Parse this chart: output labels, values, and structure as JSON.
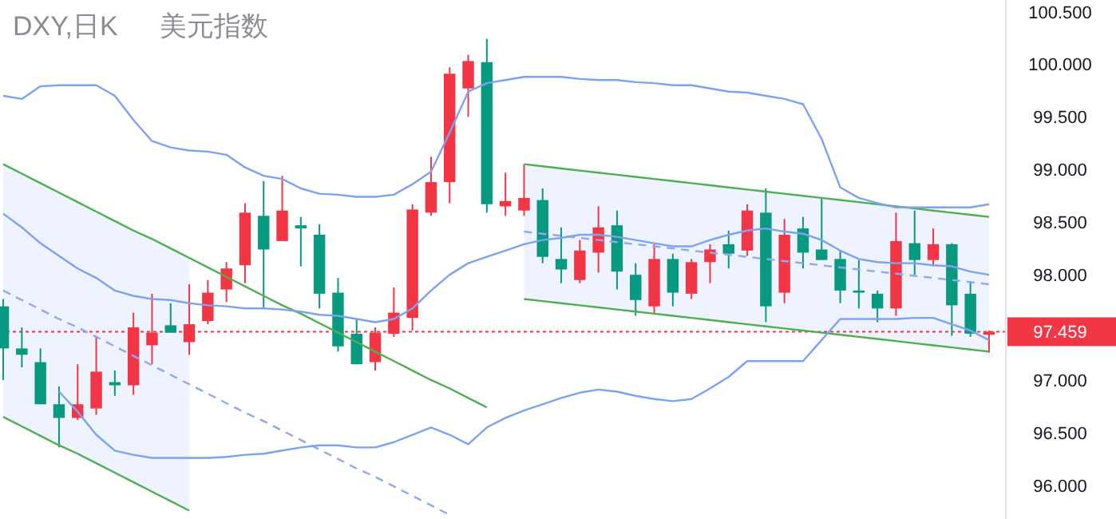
{
  "chart_data": {
    "type": "candlestick",
    "title": "DXY,日K",
    "subtitle": "美元指数",
    "categories": [
      null,
      null,
      null,
      null,
      null,
      null,
      null,
      null,
      null,
      null,
      null,
      null,
      null,
      null,
      null,
      null,
      null,
      null,
      null,
      null,
      null,
      null,
      null,
      null,
      null,
      null,
      null,
      null,
      null,
      null,
      null,
      null,
      null,
      null,
      null,
      null,
      null,
      null,
      null,
      null,
      null,
      null,
      null,
      null,
      null,
      null,
      null,
      null,
      null,
      null,
      null,
      null,
      null,
      null
    ],
    "ohlc": [
      [
        97.7,
        97.77,
        97.0,
        97.3
      ],
      [
        97.3,
        97.5,
        97.12,
        97.24
      ],
      [
        97.17,
        97.3,
        96.77,
        96.77
      ],
      [
        96.77,
        96.94,
        96.36,
        96.64
      ],
      [
        96.64,
        97.15,
        96.62,
        96.77
      ],
      [
        96.73,
        97.41,
        96.67,
        97.08
      ],
      [
        96.98,
        97.09,
        96.85,
        96.95
      ],
      [
        96.95,
        97.64,
        96.86,
        97.5
      ],
      [
        97.33,
        97.82,
        97.15,
        97.45
      ],
      [
        97.52,
        97.73,
        97.45,
        97.45
      ],
      [
        97.36,
        97.91,
        97.24,
        97.53
      ],
      [
        97.56,
        97.95,
        97.53,
        97.83
      ],
      [
        97.86,
        98.12,
        97.74,
        98.06
      ],
      [
        98.09,
        98.68,
        97.92,
        98.59
      ],
      [
        98.56,
        98.89,
        97.68,
        98.24
      ],
      [
        98.32,
        98.94,
        98.32,
        98.61
      ],
      [
        98.47,
        98.55,
        98.08,
        98.44
      ],
      [
        98.38,
        98.48,
        97.68,
        97.82
      ],
      [
        97.83,
        97.97,
        97.27,
        97.32
      ],
      [
        97.44,
        97.58,
        97.15,
        97.15
      ],
      [
        97.17,
        97.5,
        97.09,
        97.45
      ],
      [
        97.44,
        97.88,
        97.41,
        97.64
      ],
      [
        97.59,
        98.67,
        97.47,
        98.62
      ],
      [
        98.59,
        99.12,
        98.56,
        98.88
      ],
      [
        98.88,
        99.97,
        98.68,
        99.91
      ],
      [
        99.77,
        100.09,
        99.5,
        100.03
      ],
      [
        100.02,
        100.24,
        98.59,
        98.67
      ],
      [
        98.65,
        98.97,
        98.56,
        98.7
      ],
      [
        98.61,
        99.05,
        98.56,
        98.73
      ],
      [
        98.71,
        98.82,
        98.11,
        98.17
      ],
      [
        98.15,
        98.45,
        97.92,
        98.05
      ],
      [
        97.95,
        98.33,
        97.92,
        98.23
      ],
      [
        98.21,
        98.65,
        98.02,
        98.45
      ],
      [
        98.47,
        98.61,
        97.86,
        98.03
      ],
      [
        98.0,
        98.11,
        97.61,
        97.76
      ],
      [
        97.7,
        98.29,
        97.62,
        98.15
      ],
      [
        98.15,
        98.2,
        97.7,
        97.83
      ],
      [
        97.82,
        98.15,
        97.77,
        98.12
      ],
      [
        98.12,
        98.29,
        97.92,
        98.24
      ],
      [
        98.29,
        98.42,
        98.06,
        98.2
      ],
      [
        98.23,
        98.67,
        98.18,
        98.61
      ],
      [
        98.59,
        98.82,
        97.55,
        97.7
      ],
      [
        97.83,
        98.53,
        97.73,
        98.38
      ],
      [
        98.44,
        98.55,
        98.06,
        98.21
      ],
      [
        98.24,
        98.73,
        98.14,
        98.14
      ],
      [
        98.15,
        98.23,
        97.73,
        97.85
      ],
      [
        97.85,
        98.14,
        97.68,
        97.83
      ],
      [
        97.82,
        97.85,
        97.55,
        97.68
      ],
      [
        97.68,
        98.59,
        97.61,
        98.32
      ],
      [
        98.3,
        98.61,
        98.0,
        98.14
      ],
      [
        98.14,
        98.44,
        98.08,
        98.29
      ],
      [
        98.29,
        98.3,
        97.42,
        97.71
      ],
      [
        97.82,
        97.94,
        97.41,
        97.44
      ],
      [
        97.43,
        97.47,
        97.26,
        97.459
      ]
    ],
    "colors": [
      "#089981",
      "#089981",
      "#089981",
      "#089981",
      "#f23645",
      "#f23645",
      "#089981",
      "#f23645",
      "#f23645",
      "#089981",
      "#f23645",
      "#f23645",
      "#f23645",
      "#f23645",
      "#089981",
      "#f23645",
      "#089981",
      "#089981",
      "#089981",
      "#089981",
      "#f23645",
      "#f23645",
      "#f23645",
      "#f23645",
      "#f23645",
      "#f23645",
      "#089981",
      "#f23645",
      "#f23645",
      "#089981",
      "#089981",
      "#f23645",
      "#f23645",
      "#089981",
      "#089981",
      "#f23645",
      "#089981",
      "#f23645",
      "#f23645",
      "#089981",
      "#f23645",
      "#089981",
      "#f23645",
      "#089981",
      "#089981",
      "#089981",
      "#089981",
      "#089981",
      "#f23645",
      "#089981",
      "#f23645",
      "#089981",
      "#089981",
      "#f23645"
    ],
    "series": [
      {
        "type": "line",
        "color": "#8fa8ee",
        "line_style": "dashed",
        "values": [
          97.85,
          97.76,
          97.67,
          97.58,
          97.5,
          97.41,
          97.32,
          97.23,
          97.14,
          97.05,
          96.96,
          96.87,
          96.78,
          96.69,
          96.61,
          96.52,
          96.43,
          96.34,
          96.25,
          96.16,
          96.08,
          95.99,
          95.9,
          95.81,
          95.72,
          null,
          null,
          null,
          null,
          null,
          null,
          null,
          null,
          null,
          null,
          null,
          null,
          null,
          null,
          null,
          null,
          null,
          null,
          null,
          null,
          null,
          null,
          null,
          null,
          null,
          null,
          null,
          null,
          null
        ],
        "upper": [
          99.05,
          98.96,
          98.87,
          98.78,
          98.69,
          98.6,
          98.51,
          98.42,
          98.34,
          98.25,
          98.16,
          null,
          null,
          null,
          null,
          null,
          null,
          null,
          null,
          null,
          null,
          null,
          null,
          null,
          null,
          null,
          null,
          null,
          null,
          null,
          null,
          null,
          null,
          null,
          null,
          null,
          null,
          null,
          null,
          null,
          null,
          null,
          null,
          null,
          null,
          null,
          null,
          null,
          null,
          null,
          null,
          null,
          null,
          null
        ],
        "lower": [
          96.65,
          96.56,
          96.47,
          96.38,
          96.3,
          96.21,
          96.12,
          96.03,
          95.94,
          95.85,
          95.76,
          null,
          null,
          null,
          null,
          null,
          null,
          null,
          null,
          null,
          null,
          null,
          null,
          null,
          null,
          null,
          null,
          null,
          null,
          null,
          null,
          null,
          null,
          null,
          null,
          null,
          null,
          null,
          null,
          null,
          null,
          null,
          null,
          null,
          null,
          null,
          null,
          null,
          null,
          null,
          null,
          null,
          null,
          null
        ]
      },
      {
        "type": "line",
        "color": "#8fa8ee",
        "line_style": "dashed",
        "values": [
          null,
          null,
          null,
          null,
          null,
          null,
          null,
          null,
          null,
          null,
          null,
          null,
          null,
          null,
          null,
          null,
          null,
          null,
          null,
          null,
          null,
          null,
          null,
          null,
          null,
          null,
          null,
          null,
          98.41,
          98.39,
          98.37,
          98.35,
          98.33,
          98.31,
          98.29,
          98.27,
          98.25,
          98.23,
          98.21,
          98.19,
          98.17,
          98.15,
          98.13,
          98.11,
          98.09,
          98.07,
          98.05,
          98.03,
          98.01,
          97.99,
          97.97,
          97.95,
          97.93,
          97.91
        ],
        "upper": [
          null,
          null,
          null,
          null,
          null,
          null,
          null,
          null,
          null,
          null,
          null,
          null,
          null,
          null,
          null,
          null,
          null,
          null,
          null,
          null,
          null,
          null,
          null,
          null,
          null,
          null,
          null,
          null,
          99.05,
          99.03,
          99.01,
          98.99,
          98.97,
          98.95,
          98.93,
          98.91,
          98.89,
          98.87,
          98.85,
          98.83,
          98.81,
          98.79,
          98.77,
          98.75,
          98.73,
          98.71,
          98.69,
          98.67,
          98.65,
          98.63,
          98.61,
          98.59,
          98.57,
          98.55
        ],
        "lower": [
          null,
          null,
          null,
          null,
          null,
          null,
          null,
          null,
          null,
          null,
          null,
          null,
          null,
          null,
          null,
          null,
          null,
          null,
          null,
          null,
          null,
          null,
          null,
          null,
          null,
          null,
          null,
          null,
          97.77,
          97.75,
          97.73,
          97.71,
          97.69,
          97.67,
          97.65,
          97.63,
          97.61,
          97.59,
          97.57,
          97.55,
          97.53,
          97.51,
          97.49,
          97.47,
          97.45,
          97.43,
          97.41,
          97.39,
          97.37,
          97.35,
          97.33,
          97.31,
          97.29,
          97.27
        ]
      },
      {
        "type": "line",
        "color": "#4caf50",
        "line_style": "solid",
        "values": [
          99.05,
          98.96,
          98.87,
          98.78,
          98.69,
          98.6,
          98.51,
          98.42,
          98.34,
          98.25,
          98.16,
          98.07,
          97.98,
          97.89,
          97.8,
          97.71,
          97.63,
          97.54,
          97.45,
          97.36,
          97.27,
          97.18,
          97.09,
          97.0,
          96.92,
          96.83,
          96.74,
          null,
          null,
          null,
          null,
          null,
          null,
          null,
          null,
          null,
          null,
          null,
          null,
          null,
          null,
          null,
          null,
          null,
          null,
          null,
          null,
          null,
          null,
          null,
          null,
          null,
          null,
          null
        ]
      },
      {
        "type": "line",
        "color": "#4caf50",
        "line_style": "solid",
        "values": [
          96.65,
          96.56,
          96.47,
          96.38,
          96.3,
          96.21,
          96.12,
          96.03,
          95.94,
          95.85,
          95.76,
          null,
          null,
          null,
          null,
          null,
          null,
          null,
          null,
          null,
          null,
          null,
          null,
          null,
          null,
          null,
          null,
          null,
          null,
          null,
          null,
          null,
          null,
          null,
          null,
          null,
          null,
          null,
          null,
          null,
          null,
          null,
          null,
          null,
          null,
          null,
          null,
          null,
          null,
          null,
          null,
          null,
          null,
          null
        ]
      },
      {
        "type": "line",
        "color": "#4caf50",
        "line_style": "solid",
        "values": [
          null,
          null,
          null,
          null,
          null,
          null,
          null,
          null,
          null,
          null,
          null,
          null,
          null,
          null,
          null,
          null,
          null,
          null,
          null,
          null,
          null,
          null,
          null,
          null,
          null,
          null,
          null,
          null,
          99.05,
          99.03,
          99.01,
          98.99,
          98.97,
          98.95,
          98.93,
          98.91,
          98.89,
          98.87,
          98.85,
          98.83,
          98.81,
          98.79,
          98.77,
          98.75,
          98.73,
          98.71,
          98.69,
          98.67,
          98.65,
          98.63,
          98.61,
          98.59,
          98.57,
          98.55
        ]
      },
      {
        "type": "line",
        "color": "#4caf50",
        "line_style": "solid",
        "values": [
          null,
          null,
          null,
          null,
          null,
          null,
          null,
          null,
          null,
          null,
          null,
          null,
          null,
          null,
          null,
          null,
          null,
          null,
          null,
          null,
          null,
          null,
          null,
          null,
          null,
          null,
          null,
          null,
          97.77,
          97.75,
          97.73,
          97.71,
          97.69,
          97.67,
          97.65,
          97.63,
          97.61,
          97.59,
          97.57,
          97.55,
          97.53,
          97.51,
          97.49,
          97.47,
          97.45,
          97.43,
          97.41,
          97.39,
          97.37,
          97.35,
          97.33,
          97.31,
          97.29,
          97.27
        ]
      },
      {
        "type": "line",
        "color": "#7ea2f2",
        "line_style": "solid",
        "values": [
          99.7,
          99.67,
          99.79,
          99.8,
          99.8,
          99.8,
          99.7,
          99.47,
          99.27,
          99.21,
          99.18,
          99.17,
          99.14,
          99.02,
          98.94,
          98.91,
          98.82,
          98.77,
          98.76,
          98.74,
          98.74,
          98.76,
          98.86,
          98.98,
          99.35,
          99.74,
          99.82,
          99.85,
          99.88,
          99.88,
          99.88,
          99.86,
          99.85,
          99.85,
          99.83,
          99.82,
          99.8,
          99.8,
          99.77,
          99.74,
          99.73,
          99.7,
          99.67,
          99.62,
          99.29,
          98.83,
          98.73,
          98.68,
          98.64,
          98.64,
          98.64,
          98.64,
          98.64,
          98.67
        ]
      },
      {
        "type": "line",
        "color": "#7ea2f2",
        "line_style": "solid",
        "values": [
          98.58,
          98.45,
          98.3,
          98.18,
          98.06,
          97.97,
          97.85,
          97.8,
          97.77,
          97.76,
          97.73,
          97.71,
          97.7,
          97.68,
          97.68,
          97.67,
          97.65,
          97.62,
          97.61,
          97.58,
          97.55,
          97.58,
          97.68,
          97.85,
          98.0,
          98.11,
          98.17,
          98.23,
          98.29,
          98.33,
          98.35,
          98.38,
          98.38,
          98.36,
          98.33,
          98.3,
          98.27,
          98.27,
          98.33,
          98.38,
          98.42,
          98.44,
          98.41,
          98.39,
          98.33,
          98.23,
          98.15,
          98.12,
          98.11,
          98.11,
          98.09,
          98.08,
          98.03,
          98.0
        ]
      },
      {
        "type": "line",
        "color": "#7ea2f2",
        "line_style": "solid",
        "values": [
          null,
          null,
          null,
          96.89,
          96.7,
          96.48,
          96.33,
          96.29,
          96.26,
          96.26,
          96.26,
          96.26,
          96.27,
          96.29,
          96.3,
          96.33,
          96.36,
          96.38,
          96.38,
          96.36,
          96.36,
          96.41,
          96.48,
          96.55,
          96.48,
          96.39,
          96.55,
          96.64,
          96.71,
          96.77,
          96.83,
          96.88,
          96.91,
          96.89,
          96.85,
          96.82,
          96.8,
          96.82,
          96.92,
          97.03,
          97.18,
          97.18,
          97.18,
          97.18,
          97.38,
          97.58,
          97.58,
          97.58,
          97.58,
          97.59,
          97.59,
          97.53,
          97.47,
          97.38
        ]
      }
    ],
    "ylim": [
      95.68,
      100.61
    ],
    "yticks": [
      {
        "value": 96.0,
        "label": "96.000"
      },
      {
        "value": 96.5,
        "label": "96.500"
      },
      {
        "value": 97.0,
        "label": "97.000"
      },
      {
        "value": 98.0,
        "label": "98.000"
      },
      {
        "value": 98.5,
        "label": "98.500"
      },
      {
        "value": 99.0,
        "label": "99.000"
      },
      {
        "value": 99.5,
        "label": "99.500"
      },
      {
        "value": 100.0,
        "label": "100.000"
      },
      {
        "value": 100.5,
        "label": "100.500"
      }
    ],
    "tick_labels": "y",
    "ref_lines": [
      {
        "axis": "y",
        "value": 97.459,
        "label": "97.459",
        "color": "#f23645",
        "line_style": "dotted"
      }
    ]
  }
}
